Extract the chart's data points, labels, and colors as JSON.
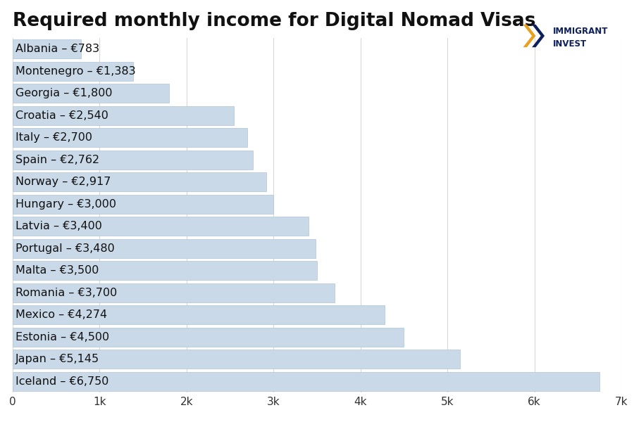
{
  "title": "Required monthly income for Digital Nomad Visas",
  "countries": [
    "Albania – €783",
    "Montenegro – €1,383",
    "Georgia – €1,800",
    "Croatia – €2,540",
    "Italy – €2,700",
    "Spain – €2,762",
    "Norway – €2,917",
    "Hungary – €3,000",
    "Latvia – €3,400",
    "Portugal – €3,480",
    "Malta – €3,500",
    "Romania – €3,700",
    "Mexico – €4,274",
    "Estonia – €4,500",
    "Japan – €5,145",
    "Iceland – €6,750"
  ],
  "values": [
    783,
    1383,
    1800,
    2540,
    2700,
    2762,
    2917,
    3000,
    3400,
    3480,
    3500,
    3700,
    4274,
    4500,
    5145,
    6750
  ],
  "bar_color": "#c9d9e8",
  "bar_edge_color": "#b0c4d4",
  "background_color": "#ffffff",
  "title_fontsize": 19,
  "label_fontsize": 11.5,
  "tick_fontsize": 11,
  "xlim": [
    0,
    7000
  ],
  "xticks": [
    0,
    1000,
    2000,
    3000,
    4000,
    5000,
    6000,
    7000
  ],
  "xtick_labels": [
    "0",
    "1k",
    "2k",
    "3k",
    "4k",
    "5k",
    "6k",
    "7k"
  ],
  "grid_color": "#d8d8d8",
  "logo_text_1": "IMMIGRANT",
  "logo_text_2": "INVEST",
  "logo_color": "#0d1f5c",
  "chevron_color_left": "#e8a020",
  "chevron_color_right": "#0d1f5c"
}
